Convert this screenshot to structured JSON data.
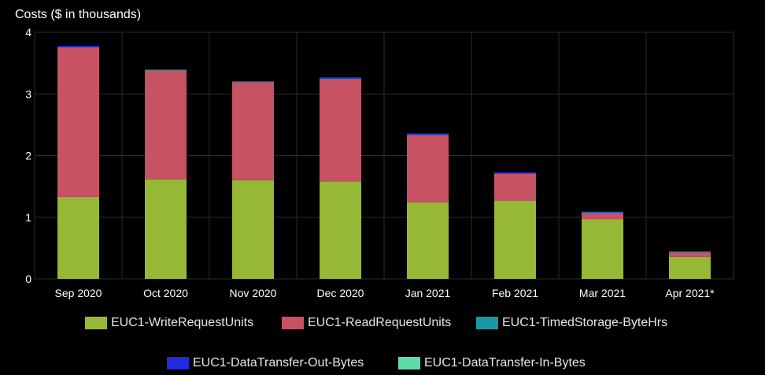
{
  "chart_data": {
    "type": "bar",
    "stacked": true,
    "title": "Costs ($ in thousands)",
    "xlabel": "",
    "ylabel": "Costs ($ in thousands)",
    "ylim": [
      0,
      4
    ],
    "yticks": [
      0,
      1,
      2,
      3,
      4
    ],
    "grid": true,
    "legend_position": "bottom",
    "categories": [
      "Sep 2020",
      "Oct 2020",
      "Nov 2020",
      "Dec 2020",
      "Jan 2021",
      "Feb 2021",
      "Mar 2021",
      "Apr 2021*"
    ],
    "series": [
      {
        "name": "EUC1-WriteRequestUnits",
        "color": "#97b836",
        "values": [
          1.33,
          1.61,
          1.6,
          1.58,
          1.24,
          1.27,
          0.97,
          0.36
        ]
      },
      {
        "name": "EUC1-ReadRequestUnits",
        "color": "#c65263",
        "values": [
          2.42,
          1.77,
          1.59,
          1.66,
          1.09,
          0.43,
          0.1,
          0.07
        ]
      },
      {
        "name": "EUC1-TimedStorage-ByteHrs",
        "color": "#1a96a6",
        "values": [
          0.01,
          0.01,
          0.01,
          0.01,
          0.01,
          0.01,
          0.01,
          0.01
        ]
      },
      {
        "name": "EUC1-DataTransfer-Out-Bytes",
        "color": "#1f2bdc",
        "values": [
          0.02,
          0.01,
          0.01,
          0.02,
          0.02,
          0.02,
          0.01,
          0.01
        ]
      },
      {
        "name": "EUC1-DataTransfer-In-Bytes",
        "color": "#5fdba7",
        "values": [
          0.0,
          0.0,
          0.0,
          0.0,
          0.0,
          0.0,
          0.0,
          0.0
        ]
      }
    ]
  }
}
